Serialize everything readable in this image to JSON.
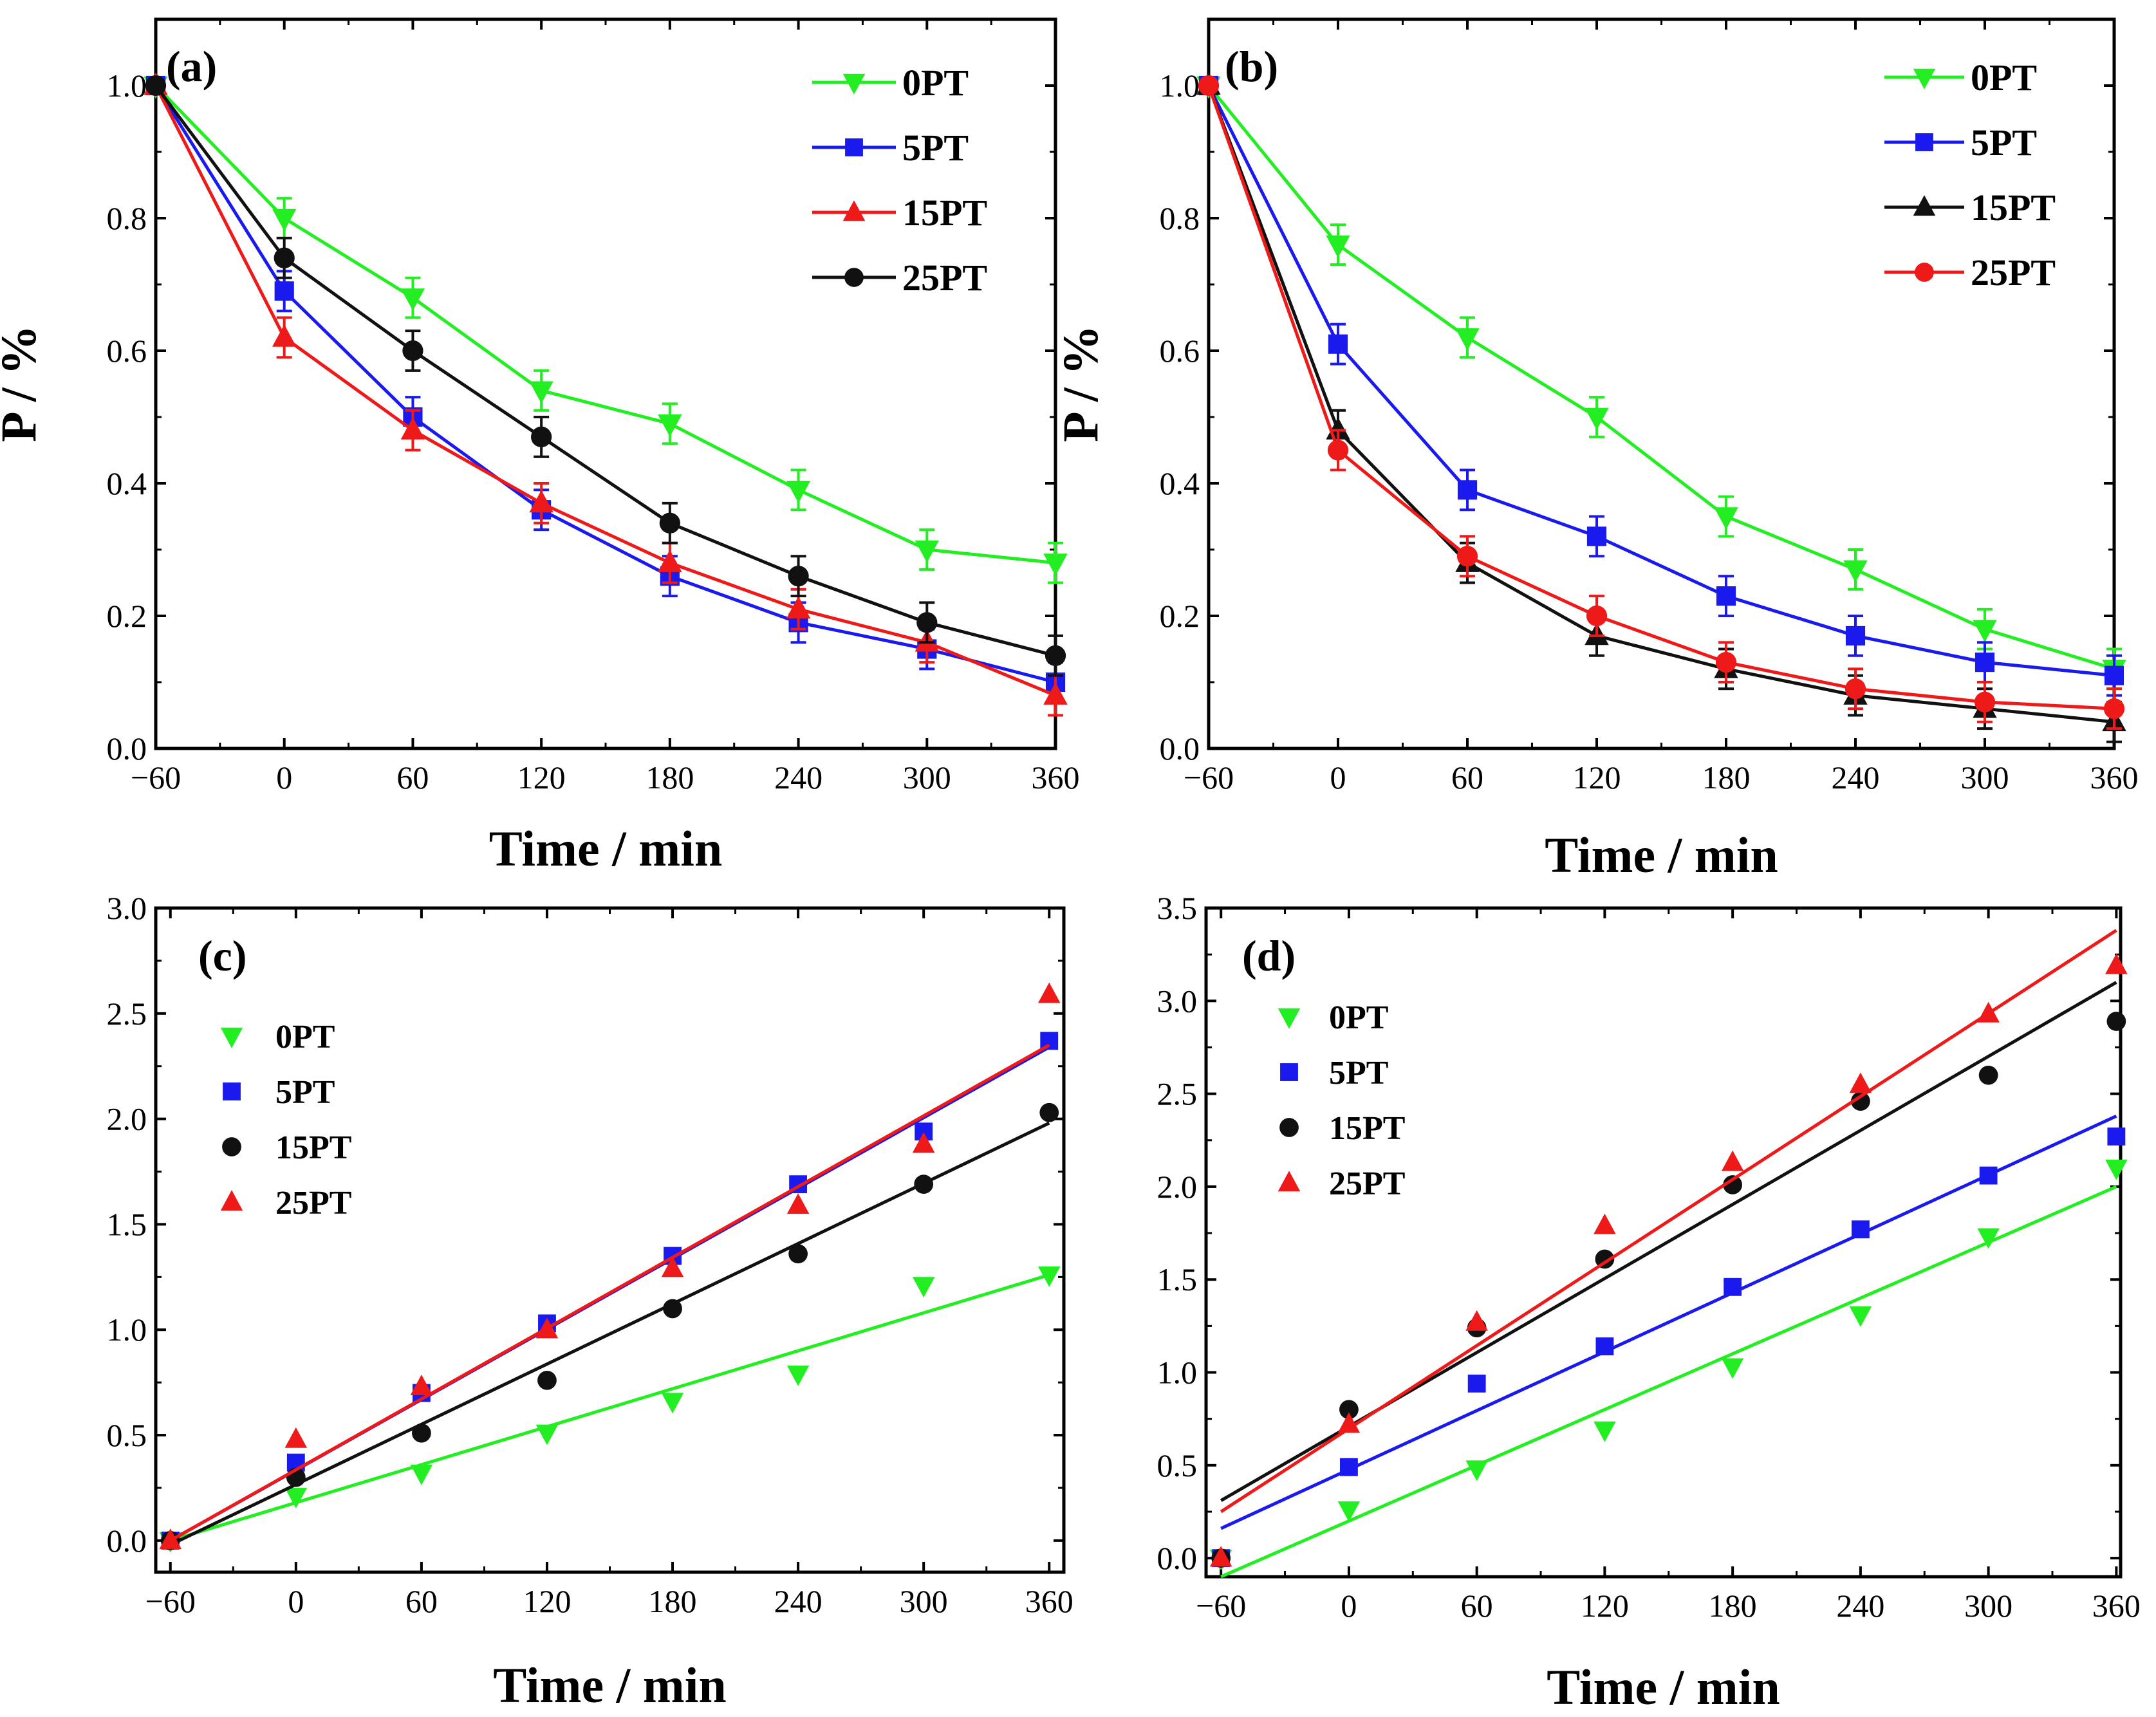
{
  "chart_data": [
    {
      "panel": "(a)",
      "type": "line",
      "xlabel": "Time / min",
      "ylabel": "P / %",
      "xlim": [
        -60,
        360
      ],
      "ylim": [
        0,
        1.1
      ],
      "xticks": [
        -60,
        0,
        60,
        120,
        180,
        240,
        300,
        360
      ],
      "xtick_labels": [
        "−60",
        "0",
        "60",
        "120",
        "180",
        "240",
        "300",
        "360"
      ],
      "yticks": [
        0,
        0.2,
        0.4,
        0.6,
        0.8,
        1.0
      ],
      "ytick_labels": [
        "0.0",
        "0.2",
        "0.4",
        "0.6",
        "0.8",
        "1.0"
      ],
      "legend_position": "top-right",
      "x": [
        -60,
        0,
        60,
        120,
        180,
        240,
        300,
        360
      ],
      "series": [
        {
          "name": "0PT",
          "color": "#22ee22",
          "marker": "triangle-down",
          "values": [
            1.0,
            0.8,
            0.68,
            0.54,
            0.49,
            0.39,
            0.3,
            0.28
          ],
          "err": [
            0,
            0.03,
            0.03,
            0.03,
            0.03,
            0.03,
            0.03,
            0.03
          ]
        },
        {
          "name": "5PT",
          "color": "#1a1aee",
          "marker": "square",
          "values": [
            1.0,
            0.69,
            0.5,
            0.36,
            0.26,
            0.19,
            0.15,
            0.1
          ],
          "err": [
            0,
            0.03,
            0.03,
            0.03,
            0.03,
            0.03,
            0.03,
            0.03
          ]
        },
        {
          "name": "15PT",
          "color": "#ee1a1a",
          "marker": "triangle-up",
          "values": [
            1.0,
            0.62,
            0.48,
            0.37,
            0.28,
            0.21,
            0.16,
            0.08
          ],
          "err": [
            0,
            0.03,
            0.03,
            0.03,
            0.03,
            0.03,
            0.03,
            0.03
          ]
        },
        {
          "name": "25PT",
          "color": "#111111",
          "marker": "circle",
          "values": [
            1.0,
            0.74,
            0.6,
            0.47,
            0.34,
            0.26,
            0.19,
            0.14
          ],
          "err": [
            0,
            0.03,
            0.03,
            0.03,
            0.03,
            0.03,
            0.03,
            0.03
          ]
        }
      ]
    },
    {
      "panel": "(b)",
      "type": "line",
      "xlabel": "Time / min",
      "ylabel": "P / %",
      "xlim": [
        -60,
        360
      ],
      "ylim": [
        0,
        1.1
      ],
      "xticks": [
        -60,
        0,
        60,
        120,
        180,
        240,
        300,
        360
      ],
      "xtick_labels": [
        "−60",
        "0",
        "60",
        "120",
        "180",
        "240",
        "300",
        "360"
      ],
      "yticks": [
        0,
        0.2,
        0.4,
        0.6,
        0.8,
        1.0
      ],
      "ytick_labels": [
        "0.0",
        "0.2",
        "0.4",
        "0.6",
        "0.8",
        "1.0"
      ],
      "legend_position": "top-right",
      "x": [
        -60,
        0,
        60,
        120,
        180,
        240,
        300,
        360
      ],
      "series": [
        {
          "name": "0PT",
          "color": "#22ee22",
          "marker": "triangle-down",
          "values": [
            1.0,
            0.76,
            0.62,
            0.5,
            0.35,
            0.27,
            0.18,
            0.12
          ],
          "err": [
            0,
            0.03,
            0.03,
            0.03,
            0.03,
            0.03,
            0.03,
            0.03
          ]
        },
        {
          "name": "5PT",
          "color": "#1a1aee",
          "marker": "square",
          "values": [
            1.0,
            0.61,
            0.39,
            0.32,
            0.23,
            0.17,
            0.13,
            0.11
          ],
          "err": [
            0,
            0.03,
            0.03,
            0.03,
            0.03,
            0.03,
            0.03,
            0.03
          ]
        },
        {
          "name": "15PT",
          "color": "#111111",
          "marker": "triangle-up",
          "values": [
            1.0,
            0.48,
            0.28,
            0.17,
            0.12,
            0.08,
            0.06,
            0.04
          ],
          "err": [
            0,
            0.03,
            0.03,
            0.03,
            0.03,
            0.03,
            0.03,
            0.03
          ]
        },
        {
          "name": "25PT",
          "color": "#ee1a1a",
          "marker": "circle",
          "values": [
            1.0,
            0.45,
            0.29,
            0.2,
            0.13,
            0.09,
            0.07,
            0.06
          ],
          "err": [
            0,
            0.03,
            0.03,
            0.03,
            0.03,
            0.03,
            0.03,
            0.03
          ]
        }
      ]
    },
    {
      "panel": "(c)",
      "type": "scatter",
      "xlabel": "Time / min",
      "ylabel": "",
      "xlim": [
        -67,
        367
      ],
      "ylim": [
        -0.15,
        3.0
      ],
      "xticks": [
        -60,
        0,
        60,
        120,
        180,
        240,
        300,
        360
      ],
      "xtick_labels": [
        "−60",
        "0",
        "60",
        "120",
        "180",
        "240",
        "300",
        "360"
      ],
      "yticks": [
        0,
        0.5,
        1.0,
        1.5,
        2.0,
        2.5,
        3.0
      ],
      "ytick_labels": [
        "0.0",
        "0.5",
        "1.0",
        "1.5",
        "2.0",
        "2.5",
        "3.0"
      ],
      "legend_position": "top-left",
      "x": [
        -60,
        0,
        60,
        120,
        180,
        240,
        300,
        360
      ],
      "series": [
        {
          "name": "0PT",
          "color": "#22ee22",
          "marker": "triangle-down",
          "values": [
            0.0,
            0.21,
            0.32,
            0.51,
            0.66,
            0.79,
            1.21,
            1.26
          ],
          "fit": [
            0.0,
            1.26
          ]
        },
        {
          "name": "5PT",
          "color": "#1a1aee",
          "marker": "square",
          "values": [
            0.0,
            0.37,
            0.7,
            1.03,
            1.35,
            1.69,
            1.94,
            2.37
          ],
          "fit": [
            0.0,
            2.34
          ]
        },
        {
          "name": "15PT",
          "color": "#111111",
          "marker": "circle",
          "values": [
            0.0,
            0.3,
            0.51,
            0.76,
            1.1,
            1.36,
            1.69,
            2.03
          ],
          "fit": [
            -0.02,
            1.98
          ]
        },
        {
          "name": "25PT",
          "color": "#ee1a1a",
          "marker": "triangle-up",
          "values": [
            0.0,
            0.48,
            0.73,
            1.0,
            1.29,
            1.59,
            1.88,
            2.59
          ],
          "fit": [
            0.0,
            2.35
          ]
        }
      ]
    },
    {
      "panel": "(d)",
      "type": "scatter",
      "xlabel": "Time / min",
      "ylabel": "",
      "xlim": [
        -67,
        362
      ],
      "ylim": [
        -0.1,
        3.5
      ],
      "xticks": [
        -60,
        0,
        60,
        120,
        180,
        240,
        300,
        360
      ],
      "xtick_labels": [
        "−60",
        "0",
        "60",
        "120",
        "180",
        "240",
        "300",
        "360"
      ],
      "yticks": [
        0,
        0.5,
        1.0,
        1.5,
        2.0,
        2.5,
        3.0,
        3.5
      ],
      "ytick_labels": [
        "0.0",
        "0.5",
        "1.0",
        "1.5",
        "2.0",
        "2.5",
        "3.0",
        "3.5"
      ],
      "legend_position": "top-left",
      "x": [
        -60,
        0,
        60,
        120,
        180,
        240,
        300,
        360
      ],
      "series": [
        {
          "name": "0PT",
          "color": "#22ee22",
          "marker": "triangle-down",
          "values": [
            0.0,
            0.26,
            0.48,
            0.69,
            1.03,
            1.31,
            1.73,
            2.1
          ],
          "fit": [
            -0.1,
            2.0
          ]
        },
        {
          "name": "5PT",
          "color": "#1a1aee",
          "marker": "square",
          "values": [
            0.0,
            0.49,
            0.94,
            1.14,
            1.46,
            1.77,
            2.06,
            2.27
          ],
          "fit": [
            0.16,
            2.38
          ]
        },
        {
          "name": "15PT",
          "color": "#111111",
          "marker": "circle",
          "values": [
            0.0,
            0.8,
            1.24,
            1.61,
            2.01,
            2.46,
            2.6,
            2.89
          ],
          "fit": [
            0.31,
            3.1
          ]
        },
        {
          "name": "25PT",
          "color": "#ee1a1a",
          "marker": "triangle-up",
          "values": [
            0.0,
            0.72,
            1.27,
            1.79,
            2.13,
            2.55,
            2.93,
            3.19
          ],
          "fit": [
            0.25,
            3.38
          ]
        }
      ]
    }
  ]
}
